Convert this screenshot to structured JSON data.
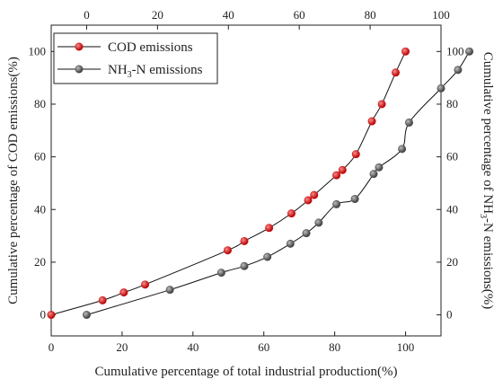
{
  "chart_data": {
    "type": "line",
    "xlabel": "Cumulative percentage of total industrial production(%)",
    "xlim": [
      0,
      110
    ],
    "xticks": [
      0,
      20,
      40,
      60,
      80,
      100
    ],
    "x2lim": [
      -10,
      100
    ],
    "x2ticks": [
      0,
      20,
      40,
      60,
      80,
      100
    ],
    "ylabel_left": "Cumulative percentage of COD emissions(%)",
    "ylabel_right_parts": [
      "Cumulative percentage of NH",
      "3",
      "-N emissions(%)"
    ],
    "ylim": [
      -8,
      110
    ],
    "yticks": [
      0,
      20,
      40,
      60,
      80,
      100
    ],
    "legend_position": "top-left",
    "series": [
      {
        "name": "COD emissions",
        "name_parts": [
          "COD emissions"
        ],
        "color": "#d11515",
        "axis": "bottom-left",
        "x": [
          0,
          14.5,
          20.5,
          26.5,
          49.8,
          54.5,
          61.5,
          67.8,
          72.5,
          74.2,
          80.5,
          82.2,
          86,
          90.5,
          93.3,
          97.2,
          100
        ],
        "y": [
          0,
          5.5,
          8.5,
          11.5,
          24.5,
          28,
          33,
          38.5,
          43.5,
          45.5,
          53,
          55,
          61,
          73.5,
          80,
          92,
          100
        ]
      },
      {
        "name": "NH3-N emissions",
        "name_parts": [
          "NH",
          "3",
          "-N emissions"
        ],
        "color": "#555555",
        "axis": "top-right",
        "x": [
          0,
          23.5,
          38,
          44.5,
          51,
          57.5,
          62,
          65.5,
          70.5,
          75.7,
          81,
          82.5,
          89,
          91,
          100,
          104.8,
          108
        ],
        "y": [
          0,
          9.5,
          16,
          18.5,
          22,
          27,
          31,
          35,
          42,
          44,
          53.5,
          56,
          63,
          73,
          86,
          93,
          100
        ]
      }
    ]
  }
}
